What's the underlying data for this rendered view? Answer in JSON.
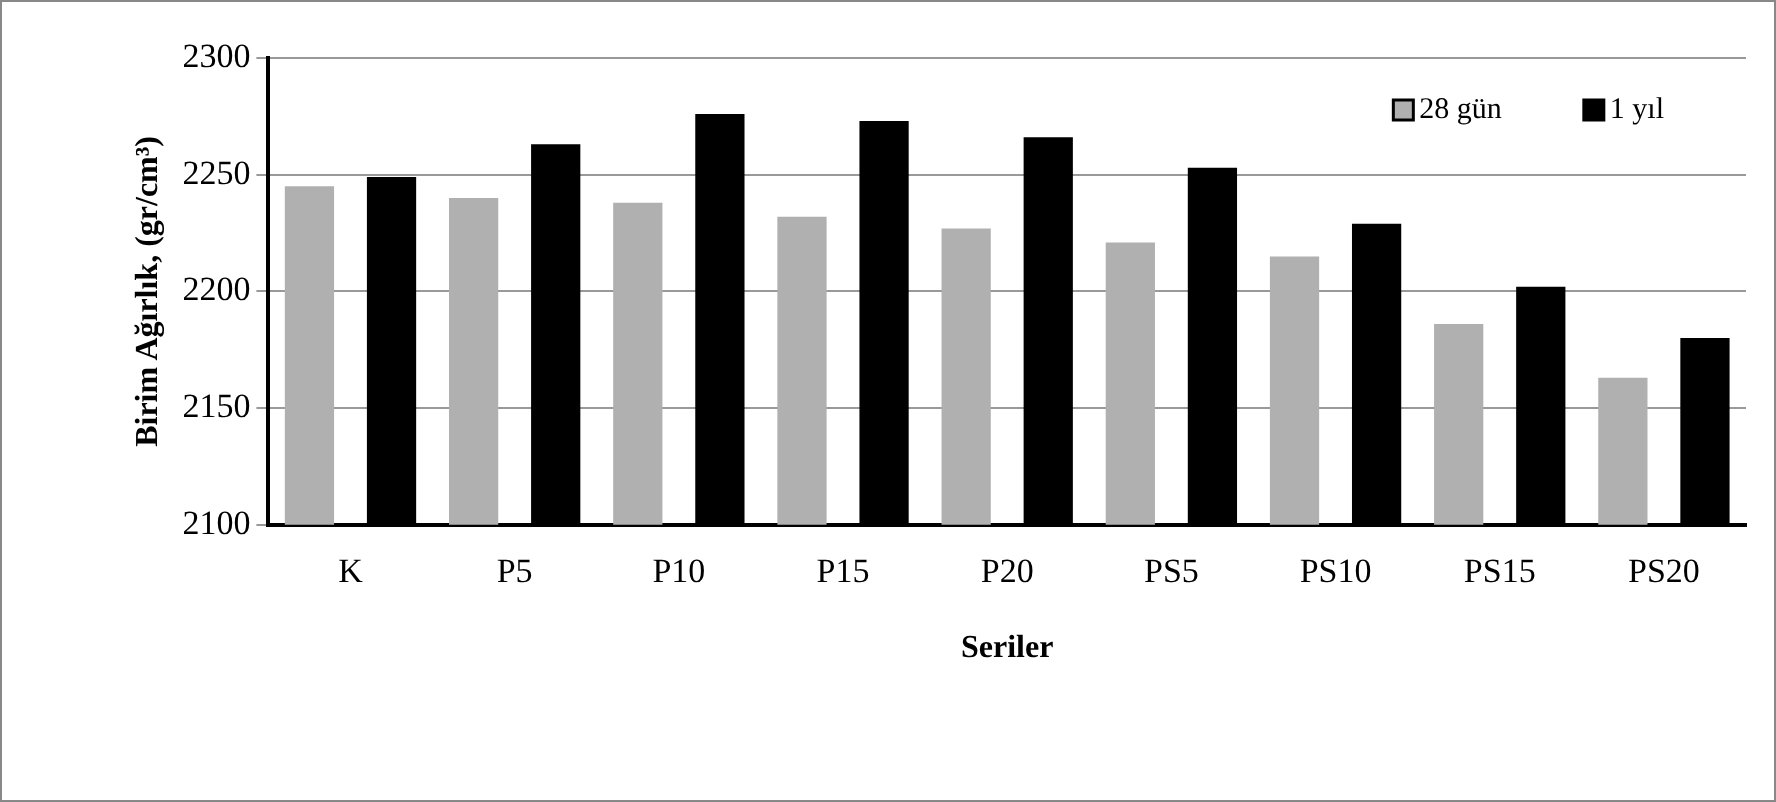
{
  "chart_data": {
    "type": "bar",
    "xlabel": "Seriler",
    "ylabel": "Birim Ağırlık, (gr/cm³)",
    "categories": [
      "K",
      "P5",
      "P10",
      "P15",
      "P20",
      "PS5",
      "PS10",
      "PS15",
      "PS20"
    ],
    "series": [
      {
        "name": "28 gün",
        "color": "#b0b0b0",
        "values": [
          2245,
          2240,
          2238,
          2232,
          2227,
          2221,
          2215,
          2186,
          2163
        ]
      },
      {
        "name": "1 yıl",
        "color": "#000000",
        "values": [
          2249,
          2263,
          2276,
          2273,
          2266,
          2253,
          2229,
          2202,
          2180
        ]
      }
    ],
    "ylim": [
      2100,
      2300
    ],
    "yticks": [
      2100,
      2150,
      2200,
      2250,
      2300
    ],
    "grid": "y",
    "legend": "top right"
  }
}
